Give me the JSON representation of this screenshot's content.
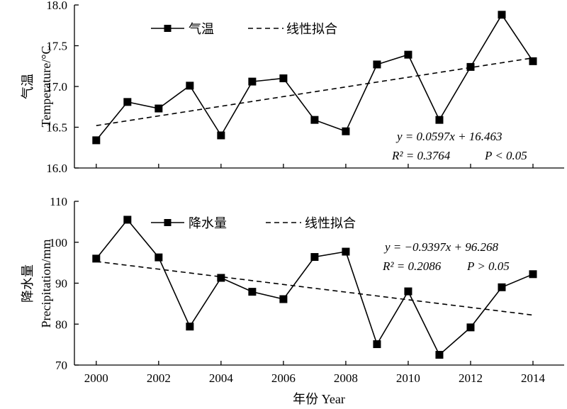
{
  "chart_data": [
    {
      "type": "line",
      "x": [
        2000,
        2001,
        2002,
        2003,
        2004,
        2005,
        2006,
        2007,
        2008,
        2009,
        2010,
        2011,
        2012,
        2013,
        2014
      ],
      "series": [
        {
          "name": "气温",
          "values": [
            16.34,
            16.81,
            16.73,
            17.01,
            16.4,
            17.06,
            17.1,
            16.59,
            16.45,
            17.27,
            17.39,
            16.59,
            17.24,
            17.88,
            17.31
          ],
          "marker": "square",
          "color": "#000000"
        }
      ],
      "fit": {
        "name": "线性拟合",
        "style": "dashed",
        "x": [
          2000,
          2014
        ],
        "y": [
          16.52,
          17.35
        ]
      },
      "ylabel_cn": "气温",
      "ylabel_en": "Temperature/°C",
      "ylim": [
        16.0,
        18.0
      ],
      "yticks": [
        16.0,
        16.5,
        17.0,
        17.5,
        18.0
      ],
      "ytick_labels": [
        "16.0",
        "16.5",
        "17.0",
        "17.5",
        "18.0"
      ],
      "equation": "y = 0.0597x + 16.463",
      "r2_label": "R² = 0.3764",
      "p_label": "P < 0.05",
      "legend_position": "top-left",
      "grid": false
    },
    {
      "type": "line",
      "x": [
        2000,
        2001,
        2002,
        2003,
        2004,
        2005,
        2006,
        2007,
        2008,
        2009,
        2010,
        2011,
        2012,
        2013,
        2014
      ],
      "series": [
        {
          "name": "降水量",
          "values": [
            96.0,
            105.5,
            96.3,
            79.4,
            91.3,
            87.9,
            86.1,
            96.4,
            97.7,
            75.1,
            88.0,
            72.5,
            79.2,
            89.0,
            92.2
          ],
          "marker": "square",
          "color": "#000000"
        }
      ],
      "fit": {
        "name": "线性拟合",
        "style": "dashed",
        "x": [
          2000,
          2014
        ],
        "y": [
          95.3,
          82.2
        ]
      },
      "ylabel_cn": "降水量",
      "ylabel_en": "Precipitation/mm",
      "ylim": [
        70,
        110
      ],
      "yticks": [
        70,
        80,
        90,
        100,
        110
      ],
      "ytick_labels": [
        "70",
        "80",
        "90",
        "100",
        "110"
      ],
      "equation": "y = −0.9397x + 96.268",
      "r2_label": "R² = 0.2086",
      "p_label": "P > 0.05",
      "legend_position": "top-left",
      "grid": false
    }
  ],
  "xaxis": {
    "label": "年份 Year",
    "xlim": [
      1999.3,
      2015.0
    ],
    "ticks": [
      2000,
      2002,
      2004,
      2006,
      2008,
      2010,
      2012,
      2014
    ],
    "tick_labels": [
      "2000",
      "2002",
      "2004",
      "2006",
      "2008",
      "2010",
      "2012",
      "2014"
    ]
  }
}
